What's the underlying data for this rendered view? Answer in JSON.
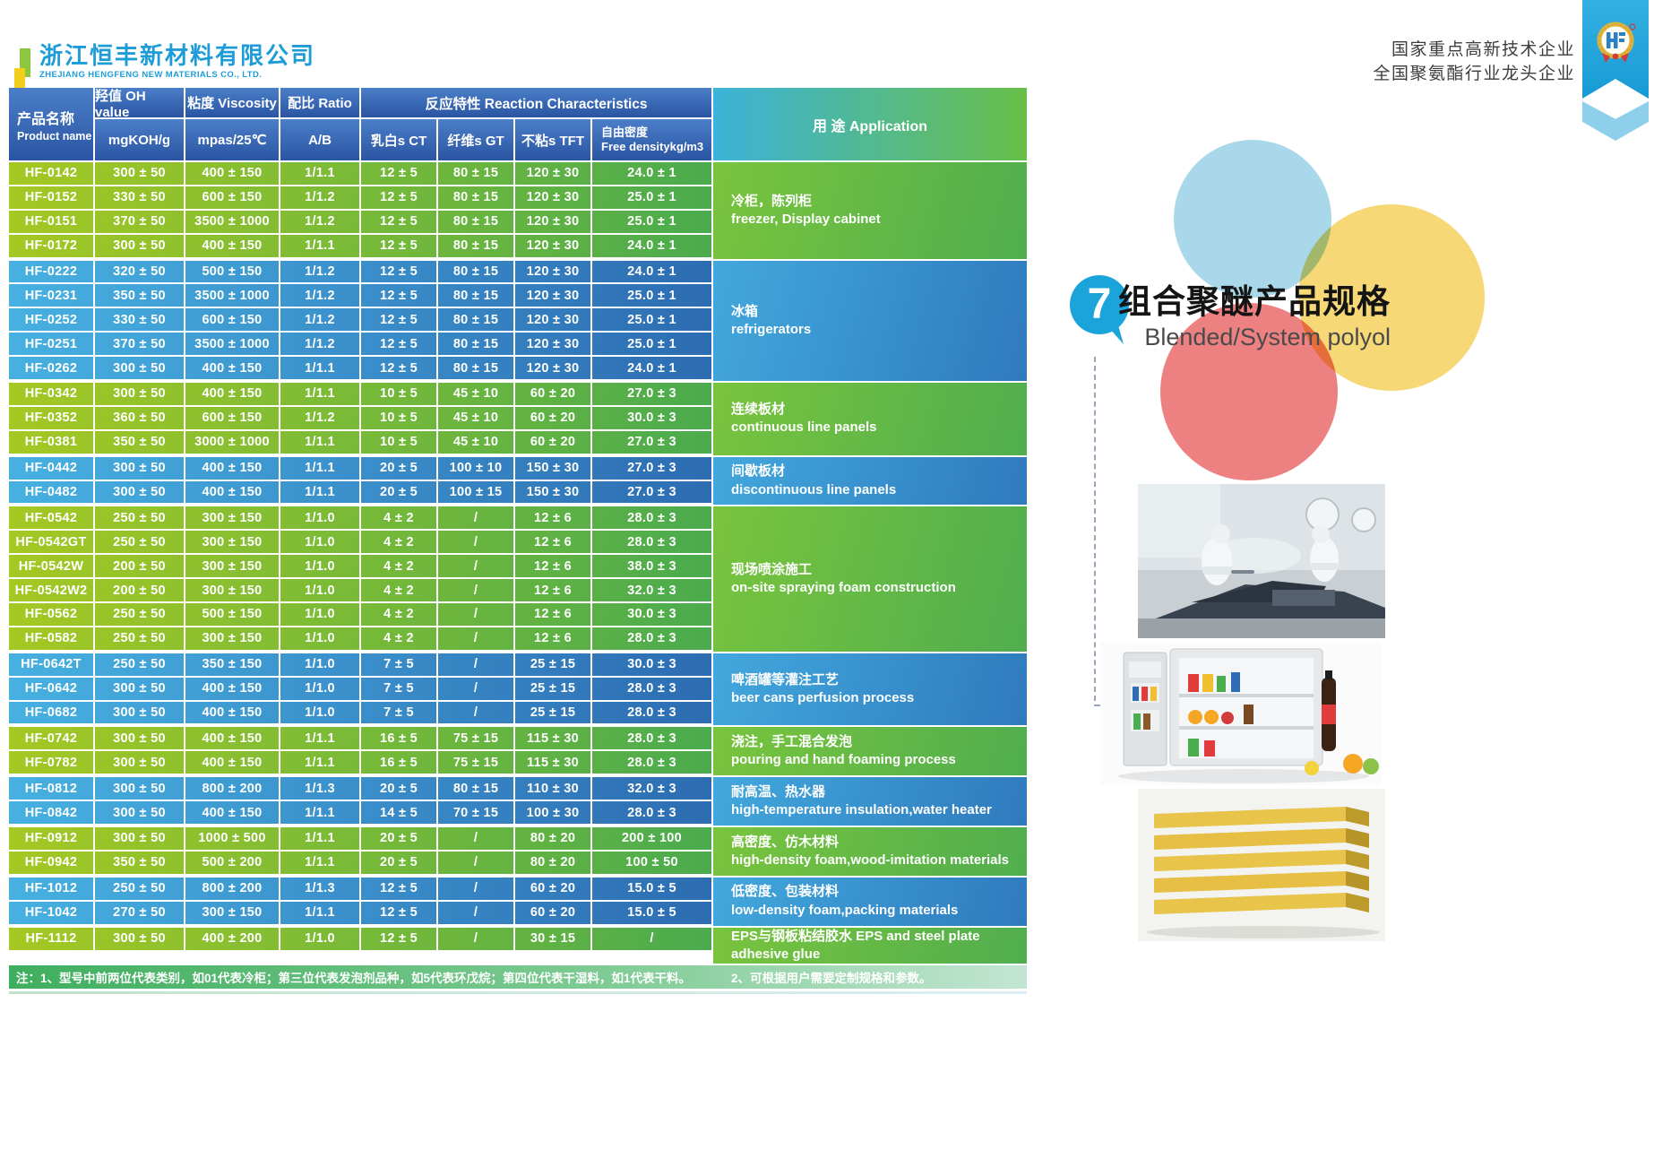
{
  "company": {
    "name_zh": "浙江恒丰新材料有限公司",
    "name_en": "ZHEJIANG HENGFENG NEW MATERIALS CO., LTD."
  },
  "certifications": [
    "国家重点高新技术企业",
    "全国聚氨酯行业龙头企业"
  ],
  "section": {
    "number": "7",
    "title_zh": "组合聚醚产品规格",
    "title_en": "Blended/System polyol"
  },
  "colors": {
    "header_blue": "#2a55a3",
    "row_green": "#5fb24f",
    "row_blue": "#2f7abd",
    "accent_cyan": "#1ba4d9",
    "note_green": "#44b05c",
    "brand_blue": "#1e9cd8"
  },
  "table": {
    "headers": {
      "product": {
        "zh": "产品名称",
        "en": "Product name"
      },
      "oh": {
        "zh": "羟值 OH value",
        "unit": "mgKOH/g"
      },
      "viscosity": {
        "zh": "粘度 Viscosity",
        "unit": "mpas/25℃"
      },
      "ratio": {
        "zh": "配比 Ratio",
        "unit": "A/B"
      },
      "reaction": {
        "zh_en": "反应特性 Reaction Characteristics",
        "ct": "乳白s CT",
        "gt": "纤维s GT",
        "tft": "不粘s TFT",
        "density_zh": "自由密度",
        "density_en": "Free densitykg/m3"
      },
      "application": "用 途 Application"
    },
    "groups": [
      {
        "color": "green",
        "application_zh": "冷柜，陈列柜",
        "application_en": "freezer, Display cabinet",
        "rows": [
          {
            "name": "HF-0142",
            "oh": "300 ± 50",
            "visc": "400 ± 150",
            "ratio": "1/1.1",
            "ct": "12 ± 5",
            "gt": "80 ± 15",
            "tft": "120 ± 30",
            "density": "24.0 ± 1"
          },
          {
            "name": "HF-0152",
            "oh": "330 ± 50",
            "visc": "600 ± 150",
            "ratio": "1/1.2",
            "ct": "12 ± 5",
            "gt": "80 ± 15",
            "tft": "120 ± 30",
            "density": "25.0 ± 1"
          },
          {
            "name": "HF-0151",
            "oh": "370 ± 50",
            "visc": "3500 ± 1000",
            "ratio": "1/1.2",
            "ct": "12 ± 5",
            "gt": "80 ± 15",
            "tft": "120 ± 30",
            "density": "25.0 ± 1"
          },
          {
            "name": "HF-0172",
            "oh": "300 ± 50",
            "visc": "400 ± 150",
            "ratio": "1/1.1",
            "ct": "12 ± 5",
            "gt": "80 ± 15",
            "tft": "120 ± 30",
            "density": "24.0 ± 1"
          }
        ]
      },
      {
        "color": "blue",
        "application_zh": "冰箱",
        "application_en": "refrigerators",
        "rows": [
          {
            "name": "HF-0222",
            "oh": "320 ± 50",
            "visc": "500 ± 150",
            "ratio": "1/1.2",
            "ct": "12 ± 5",
            "gt": "80 ± 15",
            "tft": "120 ± 30",
            "density": "24.0 ± 1"
          },
          {
            "name": "HF-0231",
            "oh": "350 ± 50",
            "visc": "3500 ± 1000",
            "ratio": "1/1.2",
            "ct": "12 ± 5",
            "gt": "80 ± 15",
            "tft": "120 ± 30",
            "density": "25.0 ± 1"
          },
          {
            "name": "HF-0252",
            "oh": "330 ± 50",
            "visc": "600 ± 150",
            "ratio": "1/1.2",
            "ct": "12 ± 5",
            "gt": "80 ± 15",
            "tft": "120 ± 30",
            "density": "25.0 ± 1"
          },
          {
            "name": "HF-0251",
            "oh": "370 ± 50",
            "visc": "3500 ± 1000",
            "ratio": "1/1.2",
            "ct": "12 ± 5",
            "gt": "80 ± 15",
            "tft": "120 ± 30",
            "density": "25.0 ± 1"
          },
          {
            "name": "HF-0262",
            "oh": "300 ± 50",
            "visc": "400 ± 150",
            "ratio": "1/1.1",
            "ct": "12 ± 5",
            "gt": "80 ± 15",
            "tft": "120 ± 30",
            "density": "24.0 ± 1"
          }
        ]
      },
      {
        "color": "green",
        "application_zh": "连续板材",
        "application_en": "continuous line panels",
        "rows": [
          {
            "name": "HF-0342",
            "oh": "300 ± 50",
            "visc": "400 ± 150",
            "ratio": "1/1.1",
            "ct": "10 ± 5",
            "gt": "45 ± 10",
            "tft": "60 ± 20",
            "density": "27.0 ± 3"
          },
          {
            "name": "HF-0352",
            "oh": "360 ± 50",
            "visc": "600 ± 150",
            "ratio": "1/1.2",
            "ct": "10 ± 5",
            "gt": "45 ± 10",
            "tft": "60 ± 20",
            "density": "30.0 ± 3"
          },
          {
            "name": "HF-0381",
            "oh": "350 ± 50",
            "visc": "3000 ± 1000",
            "ratio": "1/1.1",
            "ct": "10 ± 5",
            "gt": "45 ± 10",
            "tft": "60 ± 20",
            "density": "27.0 ± 3"
          }
        ]
      },
      {
        "color": "blue",
        "application_zh": "间歇板材",
        "application_en": "discontinuous line panels",
        "rows": [
          {
            "name": "HF-0442",
            "oh": "300 ± 50",
            "visc": "400 ± 150",
            "ratio": "1/1.1",
            "ct": "20 ± 5",
            "gt": "100 ± 10",
            "tft": "150 ± 30",
            "density": "27.0 ± 3"
          },
          {
            "name": "HF-0482",
            "oh": "300 ± 50",
            "visc": "400 ± 150",
            "ratio": "1/1.1",
            "ct": "20 ± 5",
            "gt": "100 ± 15",
            "tft": "150 ± 30",
            "density": "27.0 ± 3"
          }
        ]
      },
      {
        "color": "green",
        "application_zh": "现场喷涂施工",
        "application_en": "on-site spraying foam construction",
        "rows": [
          {
            "name": "HF-0542",
            "oh": "250 ± 50",
            "visc": "300 ± 150",
            "ratio": "1/1.0",
            "ct": "4 ± 2",
            "gt": "/",
            "tft": "12 ± 6",
            "density": "28.0 ± 3"
          },
          {
            "name": "HF-0542GT",
            "oh": "250 ± 50",
            "visc": "300 ± 150",
            "ratio": "1/1.0",
            "ct": "4 ± 2",
            "gt": "/",
            "tft": "12 ± 6",
            "density": "28.0 ± 3"
          },
          {
            "name": "HF-0542W",
            "oh": "200 ± 50",
            "visc": "300 ± 150",
            "ratio": "1/1.0",
            "ct": "4 ± 2",
            "gt": "/",
            "tft": "12 ± 6",
            "density": "38.0 ± 3"
          },
          {
            "name": "HF-0542W2",
            "oh": "200 ± 50",
            "visc": "300 ± 150",
            "ratio": "1/1.0",
            "ct": "4 ± 2",
            "gt": "/",
            "tft": "12 ± 6",
            "density": "32.0 ± 3"
          },
          {
            "name": "HF-0562",
            "oh": "250 ± 50",
            "visc": "500 ± 150",
            "ratio": "1/1.0",
            "ct": "4 ± 2",
            "gt": "/",
            "tft": "12 ± 6",
            "density": "30.0 ± 3"
          },
          {
            "name": "HF-0582",
            "oh": "250 ± 50",
            "visc": "300 ± 150",
            "ratio": "1/1.0",
            "ct": "4 ± 2",
            "gt": "/",
            "tft": "12 ± 6",
            "density": "28.0 ± 3"
          }
        ]
      },
      {
        "color": "blue",
        "application_zh": "啤酒罐等灌注工艺",
        "application_en": "beer cans perfusion process",
        "rows": [
          {
            "name": "HF-0642T",
            "oh": "250 ± 50",
            "visc": "350 ± 150",
            "ratio": "1/1.0",
            "ct": "7 ± 5",
            "gt": "/",
            "tft": "25 ± 15",
            "density": "30.0 ± 3"
          },
          {
            "name": "HF-0642",
            "oh": "300 ± 50",
            "visc": "400 ± 150",
            "ratio": "1/1.0",
            "ct": "7 ± 5",
            "gt": "/",
            "tft": "25 ± 15",
            "density": "28.0 ± 3"
          },
          {
            "name": "HF-0682",
            "oh": "300 ± 50",
            "visc": "400 ± 150",
            "ratio": "1/1.0",
            "ct": "7 ± 5",
            "gt": "/",
            "tft": "25 ± 15",
            "density": "28.0 ± 3"
          }
        ]
      },
      {
        "color": "green",
        "application_zh": "浇注，手工混合发泡",
        "application_en": "pouring and hand foaming process",
        "rows": [
          {
            "name": "HF-0742",
            "oh": "300 ± 50",
            "visc": "400 ± 150",
            "ratio": "1/1.1",
            "ct": "16 ± 5",
            "gt": "75 ± 15",
            "tft": "115 ± 30",
            "density": "28.0 ± 3"
          },
          {
            "name": "HF-0782",
            "oh": "300 ± 50",
            "visc": "400 ± 150",
            "ratio": "1/1.1",
            "ct": "16 ± 5",
            "gt": "75 ± 15",
            "tft": "115 ± 30",
            "density": "28.0 ± 3"
          }
        ]
      },
      {
        "color": "blue",
        "application_zh": "耐高温、热水器",
        "application_en": "high-temperature insulation,water heater",
        "rows": [
          {
            "name": "HF-0812",
            "oh": "300 ± 50",
            "visc": "800 ± 200",
            "ratio": "1/1.3",
            "ct": "20 ± 5",
            "gt": "80 ± 15",
            "tft": "110 ± 30",
            "density": "32.0 ± 3"
          },
          {
            "name": "HF-0842",
            "oh": "300 ± 50",
            "visc": "400 ± 150",
            "ratio": "1/1.1",
            "ct": "14 ± 5",
            "gt": "70 ± 15",
            "tft": "100 ± 30",
            "density": "28.0 ± 3"
          }
        ]
      },
      {
        "color": "green",
        "application_zh": "高密度、仿木材料",
        "application_en": "high-density foam,wood-imitation materials",
        "rows": [
          {
            "name": "HF-0912",
            "oh": "300 ± 50",
            "visc": "1000 ± 500",
            "ratio": "1/1.1",
            "ct": "20 ± 5",
            "gt": "/",
            "tft": "80 ± 20",
            "density": "200 ± 100"
          },
          {
            "name": "HF-0942",
            "oh": "350 ± 50",
            "visc": "500 ± 200",
            "ratio": "1/1.1",
            "ct": "20 ± 5",
            "gt": "/",
            "tft": "80 ± 20",
            "density": "100 ± 50"
          }
        ]
      },
      {
        "color": "blue",
        "application_zh": "低密度、包装材料",
        "application_en": "low-density foam,packing materials",
        "rows": [
          {
            "name": "HF-1012",
            "oh": "250 ± 50",
            "visc": "800 ± 200",
            "ratio": "1/1.3",
            "ct": "12 ± 5",
            "gt": "/",
            "tft": "60 ± 20",
            "density": "15.0 ± 5"
          },
          {
            "name": "HF-1042",
            "oh": "270 ± 50",
            "visc": "300 ± 150",
            "ratio": "1/1.1",
            "ct": "12 ± 5",
            "gt": "/",
            "tft": "60 ± 20",
            "density": "15.0 ± 5"
          }
        ]
      },
      {
        "color": "green",
        "application_zh": "EPS与钢板粘结胶水 EPS and steel plate adhesive glue",
        "application_en": "",
        "rows": [
          {
            "name": "HF-1112",
            "oh": "300 ± 50",
            "visc": "400 ± 200",
            "ratio": "1/1.0",
            "ct": "12 ± 5",
            "gt": "/",
            "tft": "30 ± 15",
            "density": "/"
          }
        ]
      }
    ]
  },
  "notes": {
    "note1": "注：1、型号中前两位代表类别，如01代表冷柜；第三位代表发泡剂品种，如5代表环戊烷；第四位代表干湿料，如1代表干料。",
    "note2": "2、可根据用户需要定制规格和参数。"
  }
}
